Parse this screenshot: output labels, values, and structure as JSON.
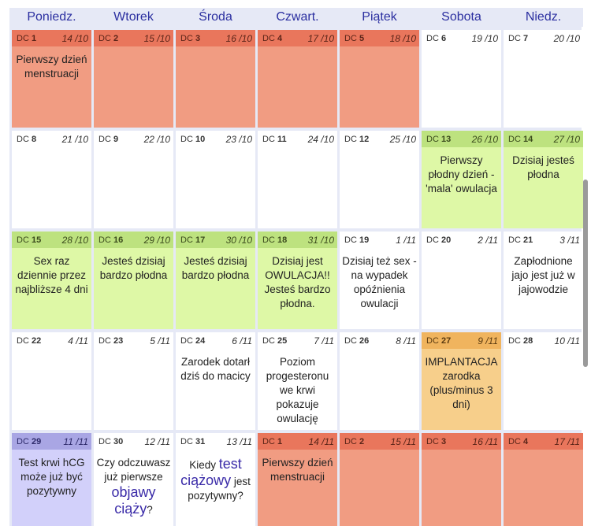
{
  "days": [
    "Poniedz.",
    "Wtorek",
    "Środa",
    "Czwart.",
    "Piątek",
    "Sobota",
    "Niedz."
  ],
  "weeks": [
    [
      {
        "dc": "1",
        "date": "14",
        "month": "10",
        "type": "menst",
        "text": "Pierwszy dzień menstruacji"
      },
      {
        "dc": "2",
        "date": "15",
        "month": "10",
        "type": "menst",
        "text": ""
      },
      {
        "dc": "3",
        "date": "16",
        "month": "10",
        "type": "menst",
        "text": ""
      },
      {
        "dc": "4",
        "date": "17",
        "month": "10",
        "type": "menst",
        "text": ""
      },
      {
        "dc": "5",
        "date": "18",
        "month": "10",
        "type": "menst",
        "text": ""
      },
      {
        "dc": "6",
        "date": "19",
        "month": "10",
        "type": "plain",
        "text": ""
      },
      {
        "dc": "7",
        "date": "20",
        "month": "10",
        "type": "plain",
        "text": ""
      }
    ],
    [
      {
        "dc": "8",
        "date": "21",
        "month": "10",
        "type": "plain",
        "text": ""
      },
      {
        "dc": "9",
        "date": "22",
        "month": "10",
        "type": "plain",
        "text": ""
      },
      {
        "dc": "10",
        "date": "23",
        "month": "10",
        "type": "plain",
        "text": ""
      },
      {
        "dc": "11",
        "date": "24",
        "month": "10",
        "type": "plain",
        "text": ""
      },
      {
        "dc": "12",
        "date": "25",
        "month": "10",
        "type": "plain",
        "text": ""
      },
      {
        "dc": "13",
        "date": "26",
        "month": "10",
        "type": "fert",
        "text": "Pierwszy płodny dzień - 'mala' owulacja"
      },
      {
        "dc": "14",
        "date": "27",
        "month": "10",
        "type": "fert",
        "text": "Dzisiaj jesteś płodna"
      }
    ],
    [
      {
        "dc": "15",
        "date": "28",
        "month": "10",
        "type": "fert",
        "text": "Sex raz dziennie przez najbliższe 4 dni"
      },
      {
        "dc": "16",
        "date": "29",
        "month": "10",
        "type": "fert",
        "text": "Jesteś dzisiaj bardzo płodna"
      },
      {
        "dc": "17",
        "date": "30",
        "month": "10",
        "type": "fert",
        "text": "Jesteś dzisiaj bardzo płodna"
      },
      {
        "dc": "18",
        "date": "31",
        "month": "10",
        "type": "fert",
        "text": "Dzisiaj jest OWULACJA!! Jesteś bardzo płodna."
      },
      {
        "dc": "19",
        "date": "1",
        "month": "11",
        "type": "plain",
        "text": "Dzisiaj też sex - na wypadek opóźnienia owulacji"
      },
      {
        "dc": "20",
        "date": "2",
        "month": "11",
        "type": "plain",
        "text": ""
      },
      {
        "dc": "21",
        "date": "3",
        "month": "11",
        "type": "plain",
        "text": "Zapłodnione jajo jest już w jajowodzie"
      }
    ],
    [
      {
        "dc": "22",
        "date": "4",
        "month": "11",
        "type": "plain",
        "text": ""
      },
      {
        "dc": "23",
        "date": "5",
        "month": "11",
        "type": "plain",
        "text": ""
      },
      {
        "dc": "24",
        "date": "6",
        "month": "11",
        "type": "plain",
        "text": "Zarodek dotarł dziś do macicy"
      },
      {
        "dc": "25",
        "date": "7",
        "month": "11",
        "type": "plain",
        "text": "Poziom progesteronu we krwi pokazuje owulację"
      },
      {
        "dc": "26",
        "date": "8",
        "month": "11",
        "type": "plain",
        "text": ""
      },
      {
        "dc": "27",
        "date": "9",
        "month": "11",
        "type": "impl",
        "text": "IMPLANTACJA zarodka (plus/minus 3 dni)"
      },
      {
        "dc": "28",
        "date": "10",
        "month": "11",
        "type": "plain",
        "text": ""
      }
    ],
    [
      {
        "dc": "29",
        "date": "11",
        "month": "11",
        "type": "hcg",
        "text": "Test krwi hCG może już być pozytywny"
      },
      {
        "dc": "30",
        "date": "12",
        "month": "11",
        "type": "plain",
        "pre": "Czy odczuwasz już pierwsze",
        "big": "objawy ciąży",
        "post": "?"
      },
      {
        "dc": "31",
        "date": "13",
        "month": "11",
        "type": "plain",
        "pre": "Kiedy",
        "big": "test ciążowy",
        "post": "jest pozytywny?"
      },
      {
        "dc": "1",
        "date": "14",
        "month": "11",
        "type": "menst",
        "text": "Pierwszy dzień menstruacji"
      },
      {
        "dc": "2",
        "date": "15",
        "month": "11",
        "type": "menst",
        "text": ""
      },
      {
        "dc": "3",
        "date": "16",
        "month": "11",
        "type": "menst",
        "text": ""
      },
      {
        "dc": "4",
        "date": "17",
        "month": "11",
        "type": "menst",
        "text": ""
      }
    ]
  ],
  "dc_prefix": "DC",
  "colors": {
    "header_text": "#2b2fa0",
    "menstruation": "#f19c82",
    "fertile": "#def8a6",
    "implantation": "#f7cf8b",
    "hcg": "#d2d0fa"
  }
}
